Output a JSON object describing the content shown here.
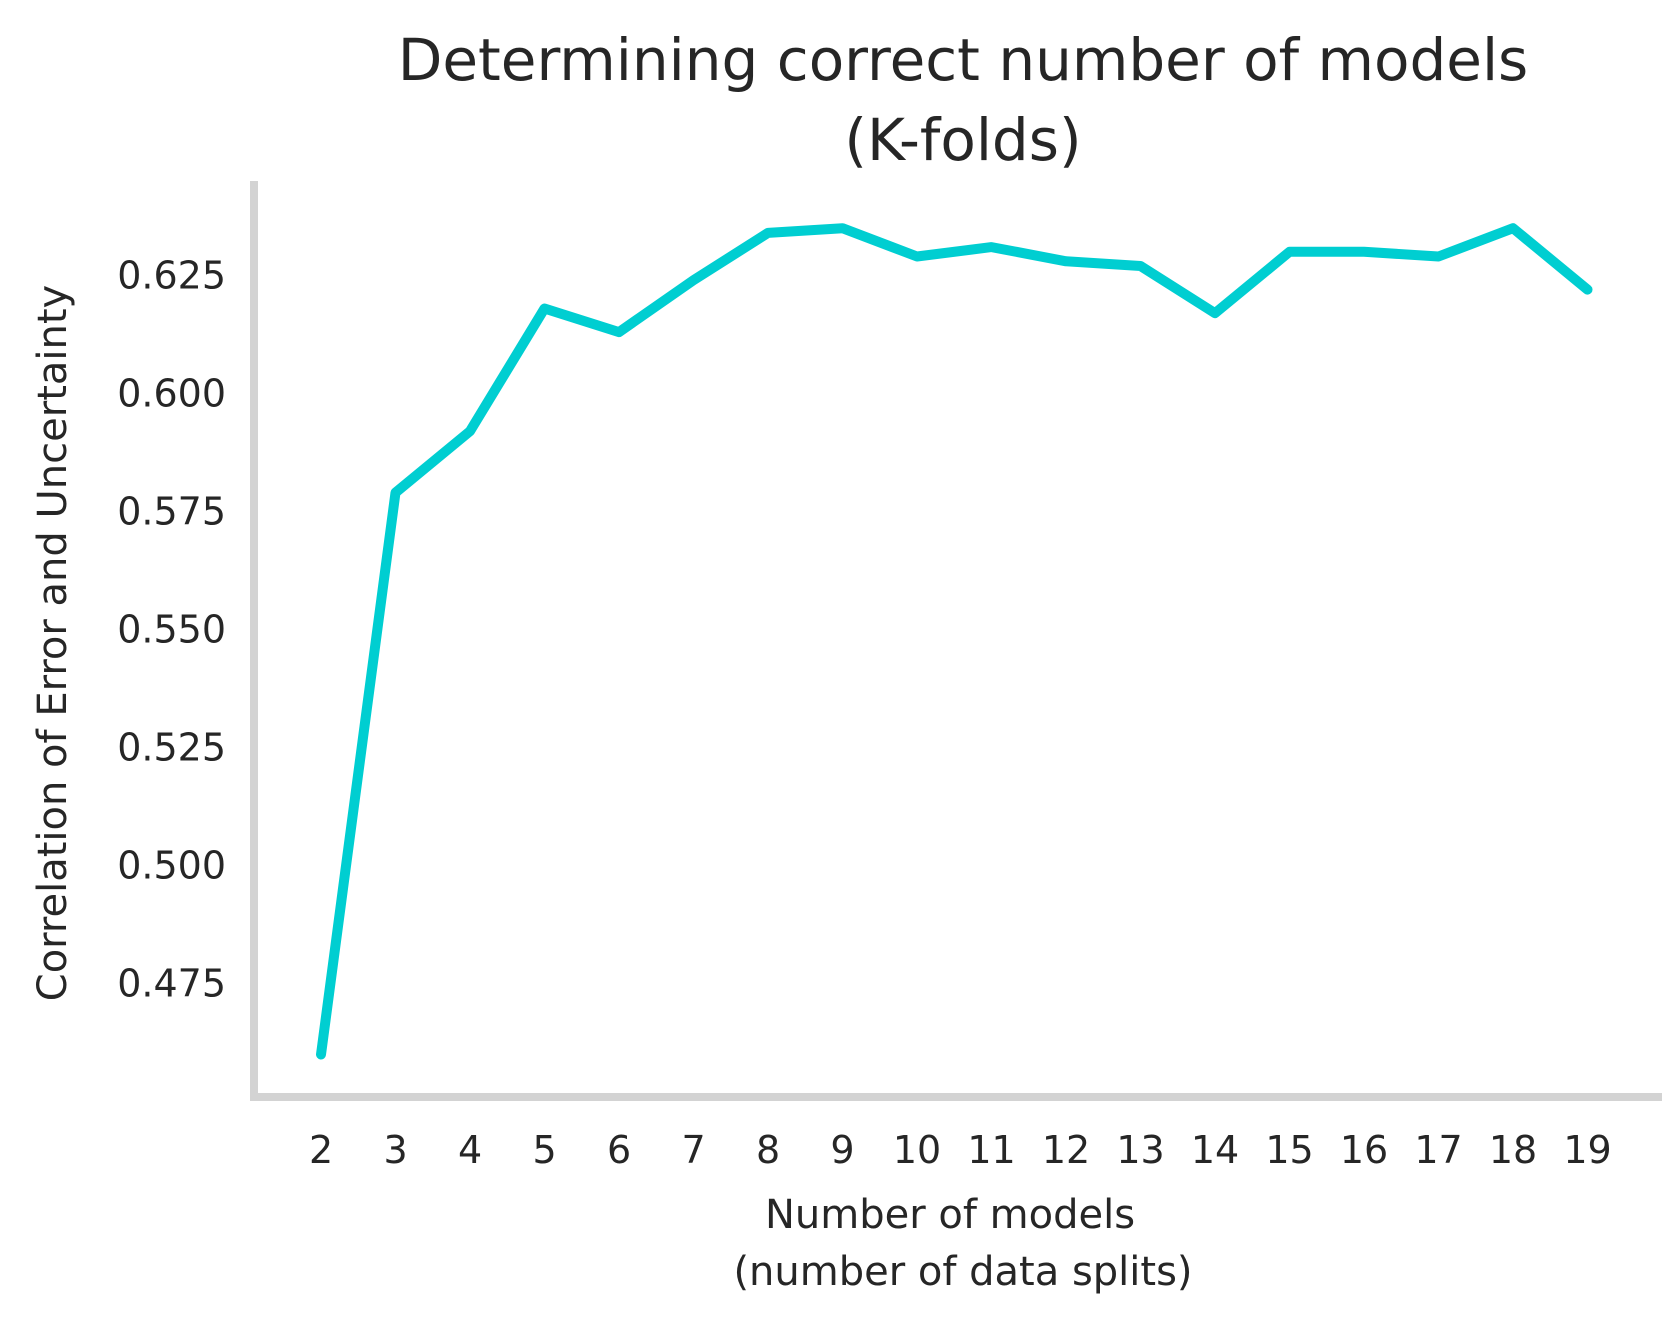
{
  "chart_data": {
    "type": "line",
    "title": "Determining correct number of models",
    "subtitle": "(K-folds)",
    "xlabel": "Number of models",
    "xlabel_line2": "(number of data splits)",
    "ylabel": "Correlation of Error and Uncertainty",
    "x": [
      2,
      3,
      4,
      5,
      6,
      7,
      8,
      9,
      10,
      11,
      12,
      13,
      14,
      15,
      16,
      17,
      18,
      19
    ],
    "x_tick_labels": [
      "2",
      "3",
      "4",
      "5",
      "6",
      "7",
      "8",
      "9",
      "10",
      "11",
      "12",
      "13",
      "14",
      "15",
      "16",
      "17",
      "18",
      "19"
    ],
    "y_tick_values": [
      0.475,
      0.5,
      0.525,
      0.55,
      0.575,
      0.6,
      0.625
    ],
    "y_tick_labels": [
      "0.475",
      "0.500",
      "0.525",
      "0.550",
      "0.575",
      "0.600",
      "0.625"
    ],
    "series": [
      {
        "color": "#00CED1",
        "values": [
          0.46,
          0.579,
          0.592,
          0.618,
          0.613,
          0.624,
          0.634,
          0.635,
          0.629,
          0.631,
          0.628,
          0.627,
          0.617,
          0.63,
          0.63,
          0.629,
          0.635,
          0.622
        ]
      }
    ],
    "xlim": [
      1.1,
      20.0
    ],
    "ylim": [
      0.451,
      0.645
    ],
    "grid": false,
    "spines": [
      "left",
      "bottom"
    ],
    "spine_color": "#d3d3d3"
  }
}
